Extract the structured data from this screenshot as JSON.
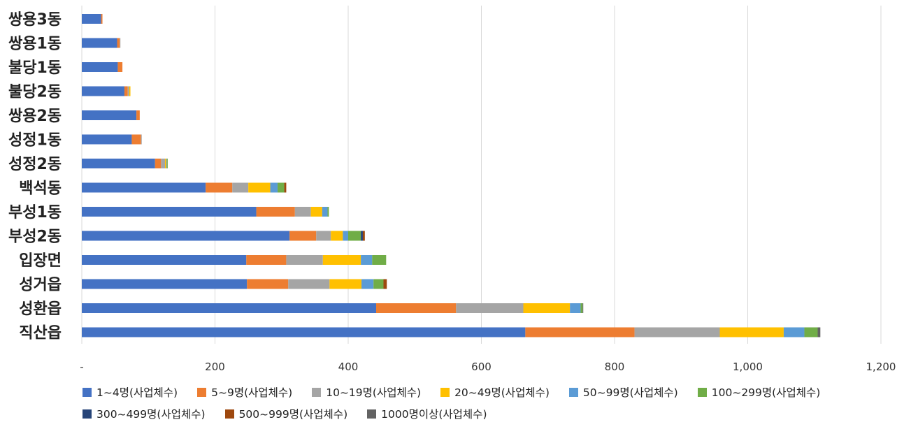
{
  "chart_data": {
    "type": "bar",
    "orientation": "horizontal",
    "stacked": true,
    "title": "",
    "xlabel": "",
    "ylabel": "",
    "xlim": [
      0,
      1200
    ],
    "x_ticks": [
      "-",
      "200",
      "400",
      "600",
      "800",
      "1,000",
      "1,200"
    ],
    "grid": "vertical",
    "legend_position": "bottom",
    "categories": [
      "쌍용3동",
      "쌍용1동",
      "불당1동",
      "불당2동",
      "쌍용2동",
      "성정1동",
      "성정2동",
      "백석동",
      "부성1동",
      "부성2동",
      "입장면",
      "성거읍",
      "성환읍",
      "직산읍"
    ],
    "series": [
      {
        "name": "1~4명(사업체수)",
        "color": "#4472C4",
        "values": [
          29,
          53,
          54,
          64,
          82,
          75,
          110,
          186,
          262,
          312,
          247,
          248,
          442,
          666
        ]
      },
      {
        "name": "5~9명(사업체수)",
        "color": "#ED7D31",
        "values": [
          2,
          4,
          7,
          5,
          5,
          14,
          9,
          40,
          58,
          40,
          60,
          62,
          120,
          164
        ]
      },
      {
        "name": "10~19명(사업체수)",
        "color": "#A5A5A5",
        "values": [
          0,
          1,
          0,
          2,
          0,
          1,
          6,
          24,
          24,
          22,
          55,
          62,
          101,
          128
        ]
      },
      {
        "name": "20~49명(사업체수)",
        "color": "#FFC000",
        "values": [
          0,
          0,
          0,
          2,
          0,
          0,
          2,
          33,
          17,
          18,
          57,
          48,
          70,
          96
        ]
      },
      {
        "name": "50~99명(사업체수)",
        "color": "#5B9BD5",
        "values": [
          0,
          0,
          0,
          0,
          0,
          0,
          1,
          11,
          8,
          8,
          17,
          18,
          16,
          31
        ]
      },
      {
        "name": "100~299명(사업체수)",
        "color": "#70AD47",
        "values": [
          0,
          0,
          0,
          0,
          0,
          0,
          1,
          10,
          2,
          19,
          21,
          15,
          3,
          20
        ]
      },
      {
        "name": "300~499명(사업체수)",
        "color": "#264478",
        "values": [
          0,
          0,
          0,
          0,
          0,
          0,
          0,
          0,
          0,
          3,
          0,
          0,
          0,
          0
        ]
      },
      {
        "name": "500~999명(사업체수)",
        "color": "#9E480E",
        "values": [
          0,
          0,
          0,
          0,
          0,
          0,
          0,
          3,
          0,
          3,
          0,
          5,
          0,
          0
        ]
      },
      {
        "name": "1000명이상(사업체수)",
        "color": "#636363",
        "values": [
          0,
          0,
          0,
          0,
          0,
          0,
          0,
          0,
          0,
          0,
          0,
          0,
          1,
          4
        ]
      }
    ]
  }
}
